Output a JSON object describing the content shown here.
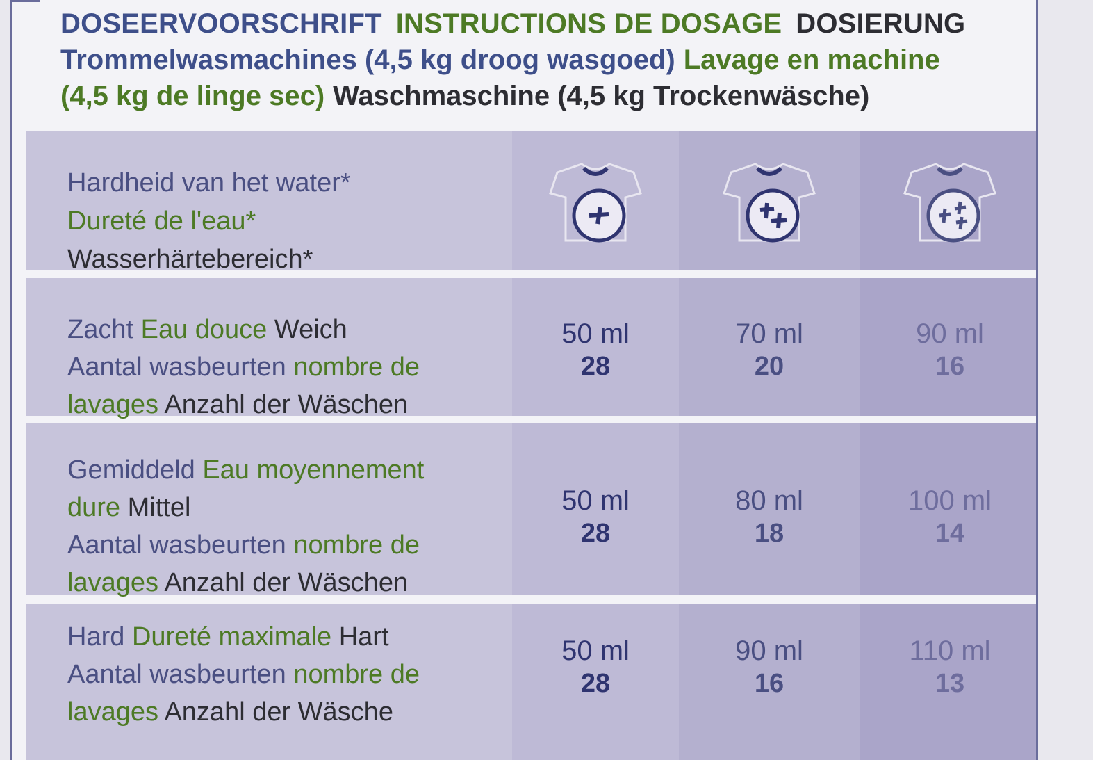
{
  "header": {
    "title_nl": "DOSEERVOORSCHRIFT",
    "title_fr": "INSTRUCTIONS DE DOSAGE",
    "title_de": "DOSIERUNG",
    "sub_nl": "Trommelwasmachines (4,5 kg droog wasgoed)",
    "sub_fr_a": "Lavage en machine",
    "sub_fr_b": "(4,5 kg de linge sec)",
    "sub_de": "Waschmaschine (4,5 kg Trockenwäsche)"
  },
  "table": {
    "head": {
      "nl": "Hardheid van het water*",
      "fr": "Dureté de l'eau*",
      "de": "Wasserhärtebereich*",
      "icons": [
        "lightly-soiled-shirt-icon",
        "normally-soiled-shirt-icon",
        "heavily-soiled-shirt-icon"
      ]
    },
    "rows": [
      {
        "nl": "Zacht",
        "fr": "Eau douce",
        "de": "Weich",
        "washes_nl": "Aantal wasbeurten",
        "washes_fr_a": "nombre de",
        "washes_fr_b": "lavages",
        "washes_de": "Anzahl der Wäschen",
        "doses": [
          {
            "ml": "50 ml",
            "n": "28"
          },
          {
            "ml": "70 ml",
            "n": "20"
          },
          {
            "ml": "90 ml",
            "n": "16"
          }
        ]
      },
      {
        "nl": "Gemiddeld",
        "fr_a": "Eau moyennement",
        "fr_b": "dure",
        "de": "Mittel",
        "washes_nl": "Aantal wasbeurten",
        "washes_fr_a": "nombre de",
        "washes_fr_b": "lavages",
        "washes_de": "Anzahl der Wäschen",
        "doses": [
          {
            "ml": "50 ml",
            "n": "28"
          },
          {
            "ml": "80 ml",
            "n": "18"
          },
          {
            "ml": "100 ml",
            "n": "14"
          }
        ]
      },
      {
        "nl": "Hard",
        "fr": "Dureté maximale",
        "de": "Hart",
        "washes_nl": "Aantal wasbeurten",
        "washes_fr_a": "nombre de",
        "washes_fr_b": "lavages",
        "washes_de": "Anzahl der Wäsche",
        "doses": [
          {
            "ml": "50 ml",
            "n": "28"
          },
          {
            "ml": "90 ml",
            "n": "16"
          },
          {
            "ml": "110 ml",
            "n": "13"
          }
        ]
      }
    ]
  },
  "colors": {
    "dutch_text": "#3e4f8a",
    "french_text": "#4d7a25",
    "german_text": "#2d2d33",
    "border": "#6a6d9c"
  }
}
